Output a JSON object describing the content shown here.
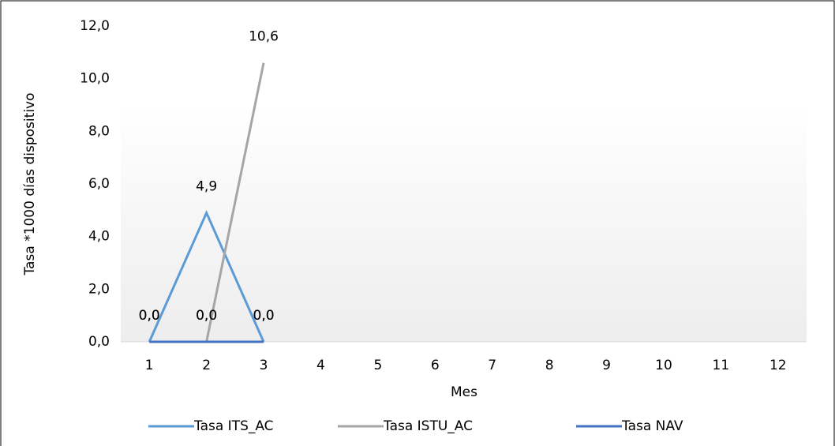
{
  "chart_data": {
    "type": "line",
    "x_label": "Mes",
    "y_label": "Tasa *1000 días dispositivo",
    "categories": [
      "1",
      "2",
      "3",
      "4",
      "5",
      "6",
      "7",
      "8",
      "9",
      "10",
      "11",
      "12"
    ],
    "series": [
      {
        "name": "Tasa ITS_AC",
        "color": "#5b9bd5",
        "values": [
          0,
          4.9,
          0,
          null,
          null,
          null,
          null,
          null,
          null,
          null,
          null,
          null
        ],
        "value_labels": [
          "0,0",
          "4,9",
          "0,0",
          null,
          null,
          null,
          null,
          null,
          null,
          null,
          null,
          null
        ]
      },
      {
        "name": "Tasa ISTU_AC",
        "color": "#a5a5a5",
        "values": [
          null,
          0,
          10.6,
          null,
          null,
          null,
          null,
          null,
          null,
          null,
          null,
          null
        ],
        "value_labels": [
          null,
          "0,0",
          "10,6",
          null,
          null,
          null,
          null,
          null,
          null,
          null,
          null,
          null
        ]
      },
      {
        "name": "Tasa NAV",
        "color": "#4472c4",
        "values": [
          0,
          0,
          0,
          null,
          null,
          null,
          null,
          null,
          null,
          null,
          null,
          null
        ],
        "value_labels": [
          "0,0",
          "0,0",
          "0,0",
          null,
          null,
          null,
          null,
          null,
          null,
          null,
          null,
          null
        ]
      }
    ],
    "ylim": [
      0,
      12
    ],
    "yticks": [
      {
        "value": 0,
        "label": "0,0"
      },
      {
        "value": 2,
        "label": "2,0"
      },
      {
        "value": 4,
        "label": "4,0"
      },
      {
        "value": 6,
        "label": "6,0"
      },
      {
        "value": 8,
        "label": "8,0"
      },
      {
        "value": 10,
        "label": "10,0"
      },
      {
        "value": 12,
        "label": "12,0"
      }
    ],
    "legend": "bottom"
  }
}
